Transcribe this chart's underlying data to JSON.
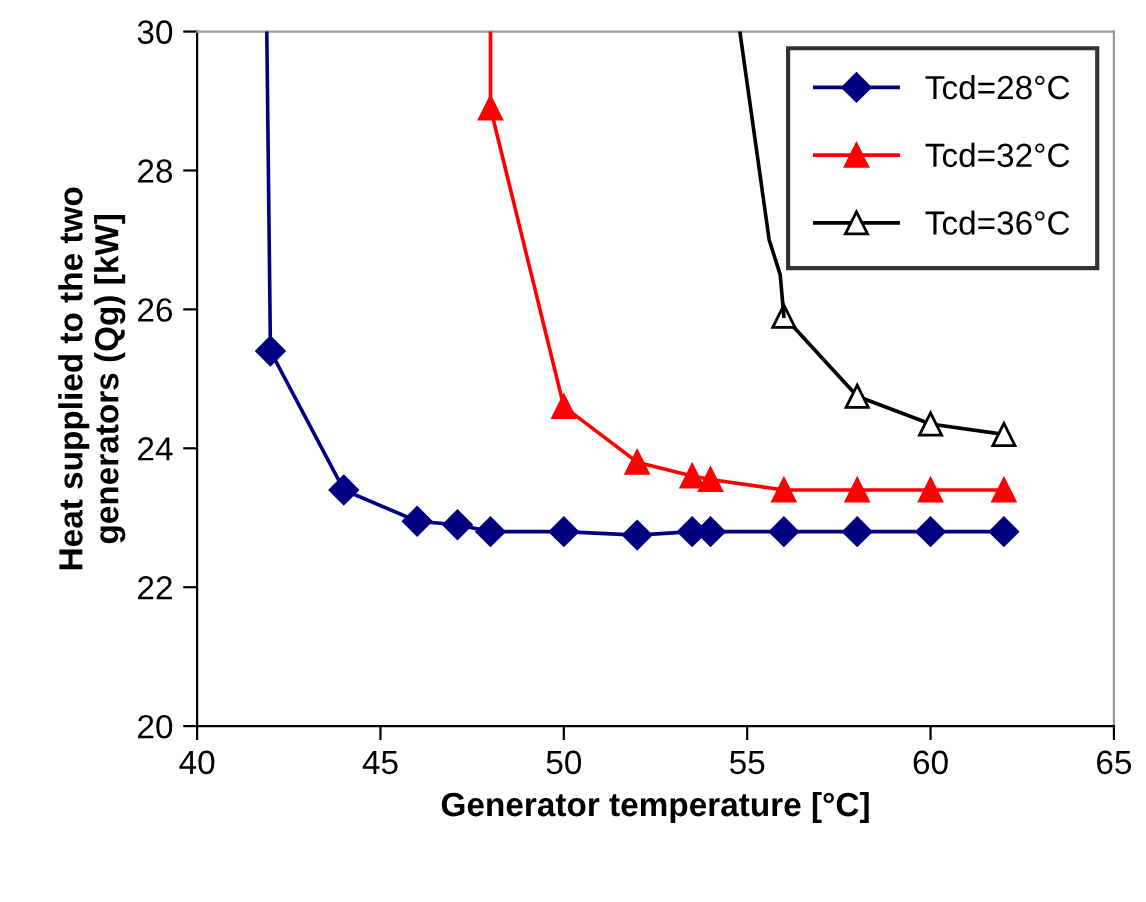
{
  "chart_data": {
    "type": "line",
    "xlabel": "Generator temperature [°C]",
    "ylabel": "Heat supplied to the two\ngenerators (Qg) [kW]",
    "xlim": [
      40,
      65
    ],
    "ylim": [
      20,
      30
    ],
    "xticks": [
      40,
      45,
      50,
      55,
      60,
      65
    ],
    "yticks": [
      20,
      22,
      24,
      26,
      28,
      30
    ],
    "grid": false,
    "legend": "top right",
    "series": [
      {
        "name": "Tcd=28°C",
        "color": "#000080",
        "marker": "diamond",
        "x": [
          42,
          44,
          46,
          47.1,
          48,
          50,
          52,
          53.5,
          54,
          56,
          58,
          60,
          62
        ],
        "values": [
          25.4,
          23.4,
          22.95,
          22.9,
          22.8,
          22.8,
          22.75,
          22.8,
          22.8,
          22.8,
          22.8,
          22.8,
          22.8
        ]
      },
      {
        "name": "Tcd=32°C",
        "color": "#ff0000",
        "marker": "triangle",
        "x": [
          48,
          50,
          52,
          53.5,
          54,
          56,
          58,
          60,
          62
        ],
        "values": [
          28.9,
          24.6,
          23.8,
          23.6,
          23.55,
          23.4,
          23.4,
          23.4,
          23.4
        ]
      },
      {
        "name": "Tcd=36°C",
        "color": "#000000",
        "marker": "triangle_open",
        "x": [
          56,
          58,
          60,
          62
        ],
        "values": [
          25.9,
          24.75,
          24.35,
          24.2
        ]
      },
      {
        "color": "#000080",
        "marker": "none",
        "x": [
          41.9,
          42
        ],
        "values": [
          30,
          25.4
        ]
      },
      {
        "color": "#ff0000",
        "marker": "none",
        "x": [
          48,
          48
        ],
        "values": [
          30,
          28.9
        ]
      },
      {
        "color": "#000000",
        "marker": "none",
        "x": [
          54.8,
          55.6,
          55.9,
          56
        ],
        "values": [
          30,
          27.0,
          26.5,
          25.9
        ]
      }
    ]
  }
}
